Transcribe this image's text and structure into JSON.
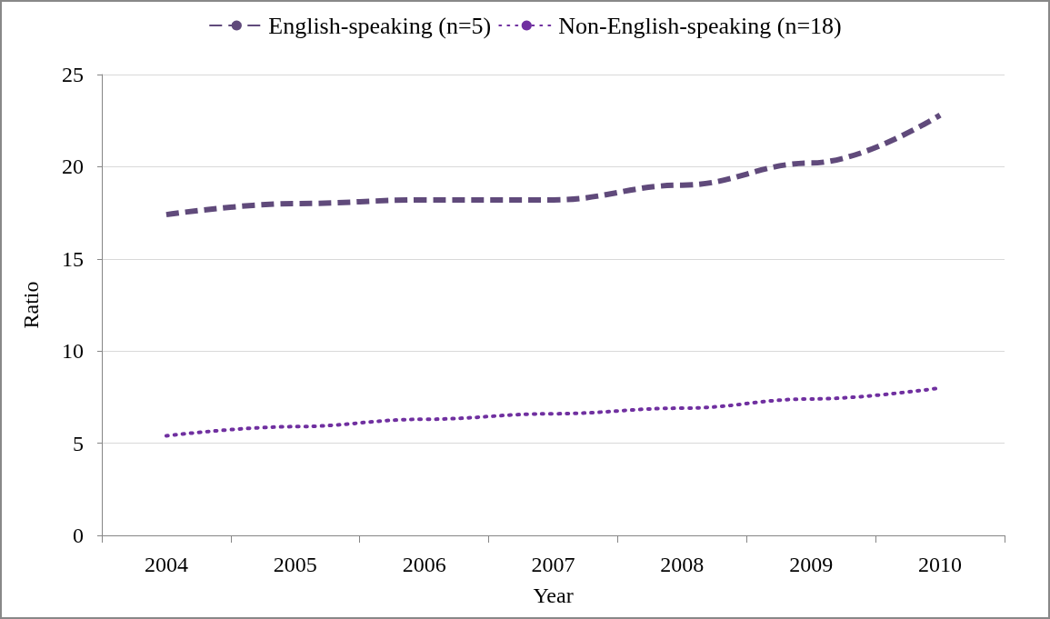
{
  "chart_data": {
    "type": "line",
    "xlabel": "Year",
    "ylabel": "Ratio",
    "categories": [
      "2004",
      "2005",
      "2006",
      "2007",
      "2008",
      "2009",
      "2010"
    ],
    "series": [
      {
        "name": "English-speaking (n=5)",
        "color": "#604a7b",
        "line_style": "dashed",
        "values": [
          17.4,
          18.0,
          18.2,
          18.2,
          19.0,
          20.2,
          22.8
        ]
      },
      {
        "name": "Non-English-speaking (n=18)",
        "color": "#7030a0",
        "line_style": "dotted",
        "values": [
          5.4,
          5.9,
          6.3,
          6.6,
          6.9,
          7.4,
          8.0
        ]
      }
    ],
    "ylim": [
      0,
      25
    ],
    "yticks": [
      0,
      5,
      10,
      15,
      20,
      25
    ],
    "grid": "y",
    "legend": "top",
    "marker": "none"
  }
}
